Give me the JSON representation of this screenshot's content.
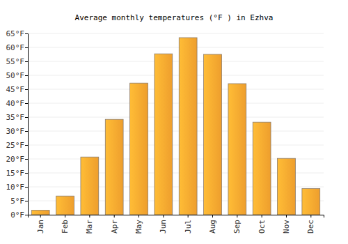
{
  "chart_data": {
    "type": "bar",
    "title": "Average monthly temperatures (°F ) in Ezhva",
    "categories": [
      "Jan",
      "Feb",
      "Mar",
      "Apr",
      "May",
      "Jun",
      "Jul",
      "Aug",
      "Sep",
      "Oct",
      "Nov",
      "Dec"
    ],
    "values": [
      1.6,
      6.7,
      20.7,
      34.2,
      47.2,
      57.7,
      63.5,
      57.5,
      47.0,
      33.2,
      20.2,
      9.4
    ],
    "color": "#fba730",
    "ylim": [
      0,
      65
    ],
    "yticks": [
      {
        "value": 0,
        "label": "0°F"
      },
      {
        "value": 5,
        "label": "5°F"
      },
      {
        "value": 10,
        "label": "10°F"
      },
      {
        "value": 15,
        "label": "15°F"
      },
      {
        "value": 20,
        "label": "20°F"
      },
      {
        "value": 25,
        "label": "25°F"
      },
      {
        "value": 30,
        "label": "30°F"
      },
      {
        "value": 35,
        "label": "35°F"
      },
      {
        "value": 40,
        "label": "40°F"
      },
      {
        "value": 45,
        "label": "45°F"
      },
      {
        "value": 50,
        "label": "50°F"
      },
      {
        "value": 55,
        "label": "55°F"
      },
      {
        "value": 60,
        "label": "60°F"
      },
      {
        "value": 65,
        "label": "65°F"
      }
    ],
    "grid": true
  }
}
